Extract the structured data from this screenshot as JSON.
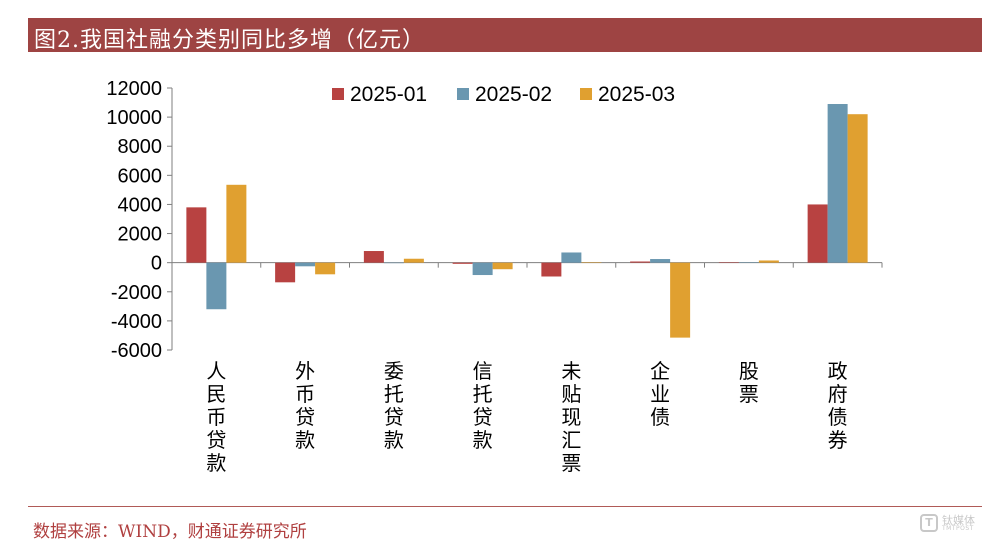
{
  "header": {
    "title": "图2.我国社融分类别同比多增（亿元）"
  },
  "footer": {
    "source": "数据来源：WIND，财通证券研究所"
  },
  "watermark": {
    "mark": "T",
    "text": "钛媒体",
    "sub": "TMTPOST"
  },
  "colors": {
    "2025-01": "#b84241",
    "2025-02": "#6a97b0",
    "2025-03": "#e0a030",
    "title_bar": "#9e4443"
  },
  "chart_data": {
    "type": "bar",
    "title": "",
    "xlabel": "",
    "ylabel": "",
    "categories": [
      "人民币贷款",
      "外币贷款",
      "委托贷款",
      "信托贷款",
      "未贴现汇票",
      "企业债",
      "股票",
      "政府债券"
    ],
    "series": [
      {
        "name": "2025-01",
        "values": [
          3800,
          -1350,
          800,
          -80,
          -950,
          80,
          30,
          4000
        ]
      },
      {
        "name": "2025-02",
        "values": [
          -3200,
          -250,
          -30,
          -850,
          700,
          250,
          30,
          10900
        ]
      },
      {
        "name": "2025-03",
        "values": [
          5350,
          -800,
          270,
          -450,
          30,
          -5150,
          150,
          10200
        ]
      }
    ],
    "ylim": [
      -6000,
      12000
    ],
    "yticks": [
      12000,
      10000,
      8000,
      6000,
      4000,
      2000,
      0,
      -2000,
      -4000,
      -6000
    ],
    "legend": "top",
    "grid": false
  }
}
